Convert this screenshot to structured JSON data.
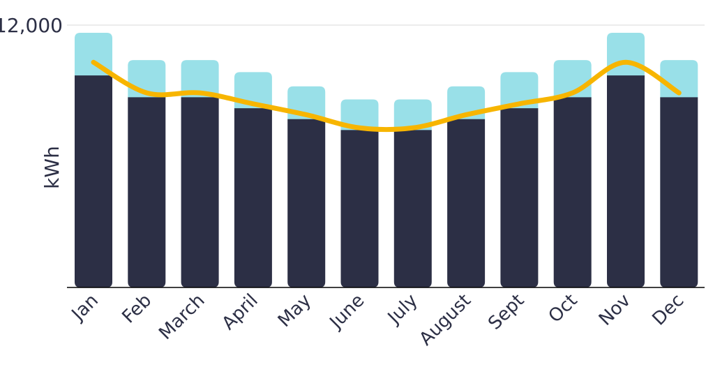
{
  "chart_data": {
    "type": "bar",
    "stacked": true,
    "categories": [
      "Jan",
      "Feb",
      "March",
      "April",
      "May",
      "June",
      "July",
      "August",
      "Sept",
      "Oct",
      "Nov",
      "Dec"
    ],
    "series": [
      {
        "type": "bar",
        "color": "#2c2f45",
        "values": [
          9700,
          8700,
          8700,
          8200,
          7700,
          7200,
          7200,
          7700,
          8200,
          8700,
          9700,
          8700
        ]
      },
      {
        "type": "bar",
        "color": "#99e0e8",
        "values": [
          1950,
          1700,
          1700,
          1650,
          1500,
          1400,
          1400,
          1500,
          1650,
          1700,
          1950,
          1700
        ]
      },
      {
        "type": "line",
        "color": "#f7b500",
        "values": [
          10300,
          8900,
          8900,
          8400,
          7900,
          7300,
          7300,
          7900,
          8400,
          8900,
          10300,
          8900
        ]
      }
    ],
    "ylabel": "kWh",
    "yticks": [
      12000
    ],
    "ytick_labels": [
      "12,000"
    ],
    "ylim": [
      0,
      12000
    ],
    "grid": true
  }
}
